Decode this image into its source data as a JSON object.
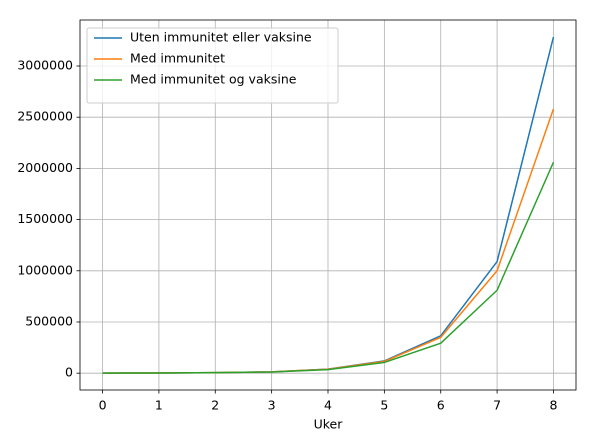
{
  "chart_data": {
    "type": "line",
    "xlabel": "Uker",
    "x": [
      0,
      1,
      2,
      3,
      4,
      5,
      6,
      7,
      8
    ],
    "series": [
      {
        "name": "Uten immunitet eller vaksine",
        "color": "#1f77b4",
        "values": [
          1000,
          2000,
          5000,
          13000,
          40000,
          120000,
          365000,
          1090000,
          3283000
        ]
      },
      {
        "name": "Med immunitet",
        "color": "#ff7f0e",
        "values": [
          1000,
          2000,
          5000,
          13000,
          38000,
          115000,
          350000,
          1000000,
          2580000
        ]
      },
      {
        "name": "Med immunitet og vaksine",
        "color": "#2ca02c",
        "values": [
          1000,
          2000,
          5000,
          12000,
          35000,
          105000,
          293000,
          810000,
          2060000
        ]
      }
    ],
    "xlim": [
      -0.4,
      8.4
    ],
    "xticks": [
      0,
      1,
      2,
      3,
      4,
      5,
      6,
      7,
      8
    ],
    "ylim": [
      -164250,
      3449250
    ],
    "yticks": [
      0,
      500000,
      1000000,
      1500000,
      2000000,
      2500000,
      3000000
    ],
    "grid": true,
    "legend": "upper-left"
  }
}
